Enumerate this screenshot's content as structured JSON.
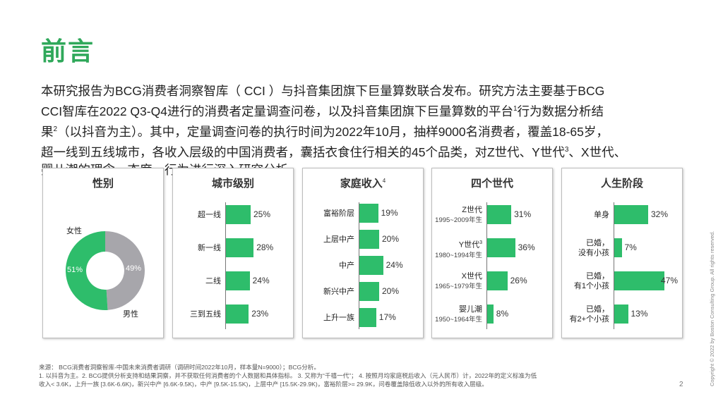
{
  "title": "前言",
  "intro": {
    "line1": "本研究报告为BCG消费者洞察智库（ CCI ）与抖音集团旗下巨量算数联合发布。研究方法主要基于BCG",
    "line2a": "CCI智库在2022 Q3-Q4进行的消费者定量调查问卷，以及抖音集团旗下巨量算数的平台",
    "sup1": "1",
    "line2b": "行为数据分析结",
    "line3a": "果",
    "sup2": "2",
    "line3b": "（以抖音为主）。其中，定量调查问卷的执行时间为2022年10月，抽样9000名消费者，覆盖18-65岁，",
    "line4a": "超一线到五线城市，各收入层级的中国消费者，囊括衣食住行相关的45个品类，对Z世代、Y世代",
    "sup3": "3",
    "line4b": "、X世代、",
    "line5": "婴儿潮的理念、态度、行为进行深入研究分析。"
  },
  "panels": {
    "gender": {
      "title": "性别",
      "female_label": "女性",
      "male_label": "男性",
      "female_pct": "51%",
      "male_pct": "49%",
      "female_value": 51,
      "male_value": 49,
      "female_color": "#2ebd6b",
      "male_color": "#a7a6ab"
    },
    "city": {
      "title": "城市级别",
      "rows": [
        {
          "label": "超一线",
          "pct": "25%",
          "value": 25
        },
        {
          "label": "新一线",
          "pct": "28%",
          "value": 28
        },
        {
          "label": "二线",
          "pct": "24%",
          "value": 24
        },
        {
          "label": "三到五线",
          "pct": "23%",
          "value": 23
        }
      ]
    },
    "income": {
      "title": "家庭收入",
      "title_sup": "4",
      "rows": [
        {
          "label": "富裕阶层",
          "pct": "19%",
          "value": 19
        },
        {
          "label": "上层中产",
          "pct": "20%",
          "value": 20
        },
        {
          "label": "中产",
          "pct": "24%",
          "value": 24
        },
        {
          "label": "新兴中产",
          "pct": "20%",
          "value": 20
        },
        {
          "label": "上升一族",
          "pct": "17%",
          "value": 17
        }
      ]
    },
    "generation": {
      "title": "四个世代",
      "rows": [
        {
          "label": "Z世代",
          "sup": "",
          "sub": "1995~2009年生",
          "pct": "31%",
          "value": 31
        },
        {
          "label": "Y世代",
          "sup": "3",
          "sub": "1980~1994年生",
          "pct": "36%",
          "value": 36
        },
        {
          "label": "X世代",
          "sup": "",
          "sub": "1965~1979年生",
          "pct": "26%",
          "value": 26
        },
        {
          "label": "婴儿潮",
          "sup": "",
          "sub": "1950~1964年生",
          "pct": "8%",
          "value": 8
        }
      ]
    },
    "life_stage": {
      "title": "人生阶段",
      "rows": [
        {
          "label1": "单身",
          "label2": "",
          "pct": "32%",
          "value": 32
        },
        {
          "label1": "已婚，",
          "label2": "没有小孩",
          "pct": "7%",
          "value": 7
        },
        {
          "label1": "已婚，",
          "label2": "有1个小孩",
          "pct": "47%",
          "value": 47
        },
        {
          "label1": "已婚，",
          "label2": "有2+个小孩",
          "pct": "13%",
          "value": 13
        }
      ]
    }
  },
  "footnotes": {
    "source": "来源： BCG消费者洞察智库-中国未来消费者调研（调研时间2022年10月，样本量N=9000）；BCG分析。",
    "notes_line1": "1. 以抖音为主。2. BCG提供分析支持和结果洞察，并不获取任何消费者的个人数据和具体指标。 3. 又称为“千禧一代”； 4. 按照月均家庭税后收入（元人民币）计，2022年的定义标准为低",
    "notes_line2": "收入< 3.6K，上升一族 [3.6K-6.6K)，新兴中产 [6.6K-9.5K)，中产 [9.5K-15.5K)，上层中产 [15.5K-29.9K)，富裕阶层>= 29.9K，问卷覆盖除低收入以外的所有收入层级。"
  },
  "page_number": "2",
  "copyright": "Copyright © 2022 by Boston Consulting Group. All rights reserved."
}
